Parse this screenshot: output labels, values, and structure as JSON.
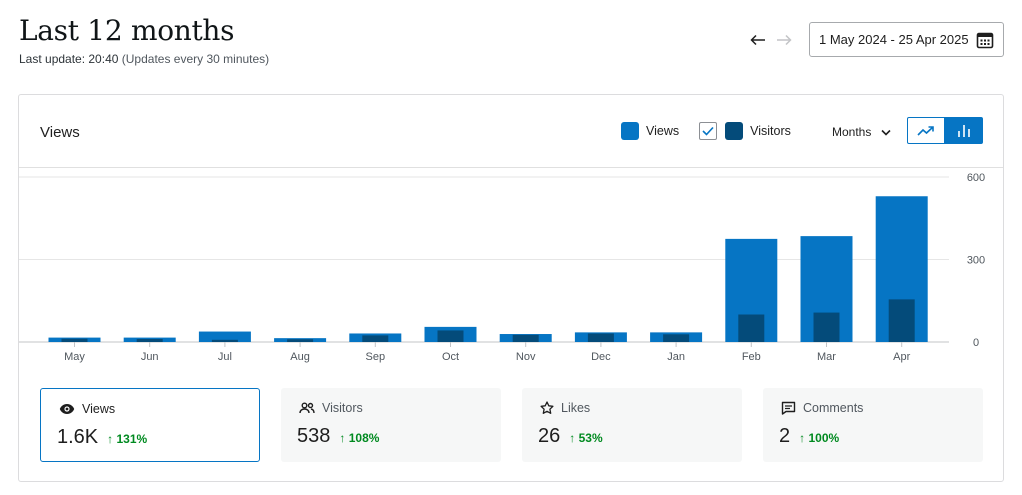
{
  "header": {
    "title": "Last 12 months",
    "last_update_label": "Last update: 20:40",
    "update_frequency": "(Updates every 30 minutes)",
    "date_range": "1 May 2024 - 25 Apr 2025"
  },
  "panel": {
    "title": "Views",
    "legend_views": "Views",
    "legend_visitors": "Visitors",
    "period": "Months"
  },
  "colors": {
    "views": "#0675c4",
    "visitors": "#044b7a",
    "accent": "#0675c4",
    "positive": "#008a20"
  },
  "chart_data": {
    "type": "bar",
    "categories": [
      "May",
      "Jun",
      "Jul",
      "Aug",
      "Sep",
      "Oct",
      "Nov",
      "Dec",
      "Jan",
      "Feb",
      "Mar",
      "Apr"
    ],
    "series": [
      {
        "name": "Views",
        "values": [
          16,
          16,
          38,
          14,
          31,
          55,
          29,
          35,
          35,
          375,
          385,
          530
        ]
      },
      {
        "name": "Visitors",
        "values": [
          12,
          11,
          8,
          10,
          24,
          42,
          26,
          31,
          28,
          100,
          107,
          155
        ]
      }
    ],
    "y_ticks": [
      "0",
      "300",
      "600"
    ],
    "ylim": [
      0,
      600
    ],
    "grid": true
  },
  "stats": [
    {
      "label": "Views",
      "value": "1.6K",
      "change": "131%",
      "icon": "eye-icon"
    },
    {
      "label": "Visitors",
      "value": "538",
      "change": "108%",
      "icon": "people-icon"
    },
    {
      "label": "Likes",
      "value": "26",
      "change": "53%",
      "icon": "star-icon"
    },
    {
      "label": "Comments",
      "value": "2",
      "change": "100%",
      "icon": "comment-icon"
    }
  ]
}
